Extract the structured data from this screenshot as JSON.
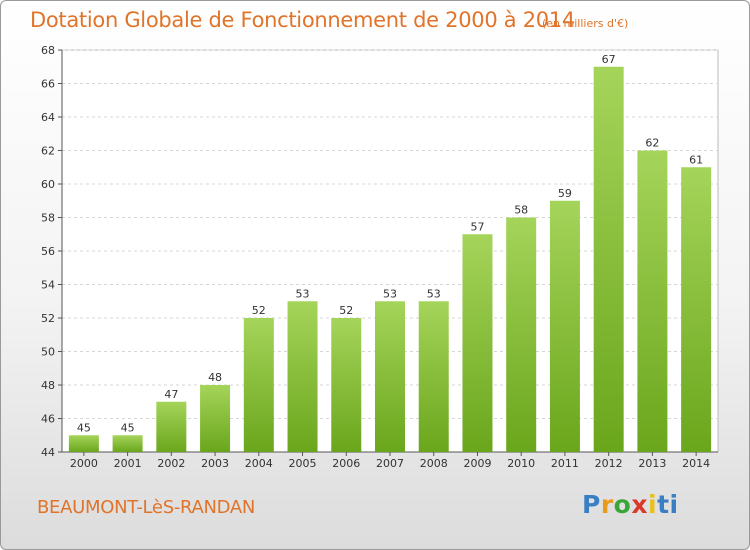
{
  "header": {
    "title": "Dotation Globale de Fonctionnement de 2000 à 2014",
    "unit": "(en milliers d'€)"
  },
  "footer": {
    "commune": "BEAUMONT-LèS-RANDAN",
    "logo_letters": [
      "P",
      "r",
      "o",
      "x",
      "i",
      "ti"
    ]
  },
  "colors": {
    "title": "#e0742a",
    "bar_top": "#a5d45a",
    "bar_bottom": "#6aa61c"
  },
  "chart_data": {
    "type": "bar",
    "title": "Dotation Globale de Fonctionnement de 2000 à 2014",
    "subtitle": "(en milliers d'€)",
    "xlabel": "",
    "ylabel": "",
    "categories": [
      "2000",
      "2001",
      "2002",
      "2003",
      "2004",
      "2005",
      "2006",
      "2007",
      "2008",
      "2009",
      "2010",
      "2011",
      "2012",
      "2013",
      "2014"
    ],
    "values": [
      45,
      45,
      47,
      48,
      52,
      53,
      52,
      53,
      53,
      57,
      58,
      59,
      67,
      62,
      61
    ],
    "ylim": [
      44,
      68
    ],
    "yticks": [
      44,
      46,
      48,
      50,
      52,
      54,
      56,
      58,
      60,
      62,
      64,
      66,
      68
    ],
    "grid": true
  }
}
